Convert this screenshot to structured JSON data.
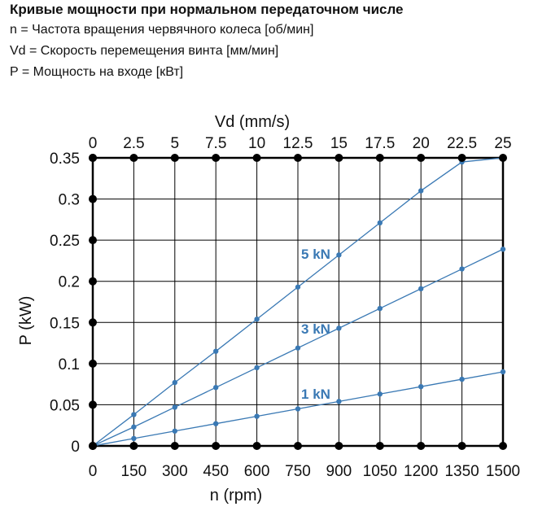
{
  "header": {
    "title": "Кривые мощности при нормальном передаточном числе",
    "legend": [
      "n = Частота вращения червячного колеса [об/мин]",
      "Vd = Скорость перемещения винта [мм/мин]",
      "P = Мощность на входе [кВт]"
    ]
  },
  "colors": {
    "series": "#3a79b4",
    "grid": "#000000",
    "axis_text": "#111111"
  },
  "chart_data": {
    "type": "line",
    "xlabel": "n (rpm)",
    "x2label": "Vd (mm/s)",
    "ylabel": "P (kW)",
    "xlim": [
      0,
      1500
    ],
    "ylim": [
      0,
      0.35
    ],
    "grid": true,
    "x_ticks": [
      "0",
      "150",
      "300",
      "450",
      "600",
      "750",
      "900",
      "1050",
      "1200",
      "1350",
      "1500"
    ],
    "x2_ticks": [
      "0",
      "2.5",
      "5",
      "7.5",
      "10",
      "12.5",
      "15",
      "17.5",
      "20",
      "22.5",
      "25"
    ],
    "y_ticks": [
      "0",
      "0.05",
      "0.1",
      "0.15",
      "0.2",
      "0.25",
      "0.3",
      "0.35"
    ],
    "x": [
      0,
      150,
      300,
      450,
      600,
      750,
      900,
      1050,
      1200,
      1350,
      1500
    ],
    "series": [
      {
        "name": "5 kN",
        "values": [
          0,
          0.038,
          0.077,
          0.115,
          0.154,
          0.193,
          0.232,
          0.271,
          0.31,
          0.345,
          0.35
        ]
      },
      {
        "name": "3 kN",
        "values": [
          0,
          0.023,
          0.047,
          0.071,
          0.095,
          0.119,
          0.143,
          0.167,
          0.191,
          0.215,
          0.239
        ]
      },
      {
        "name": "1 kN",
        "values": [
          0,
          0.009,
          0.018,
          0.027,
          0.036,
          0.045,
          0.054,
          0.063,
          0.072,
          0.081,
          0.09
        ]
      }
    ]
  }
}
